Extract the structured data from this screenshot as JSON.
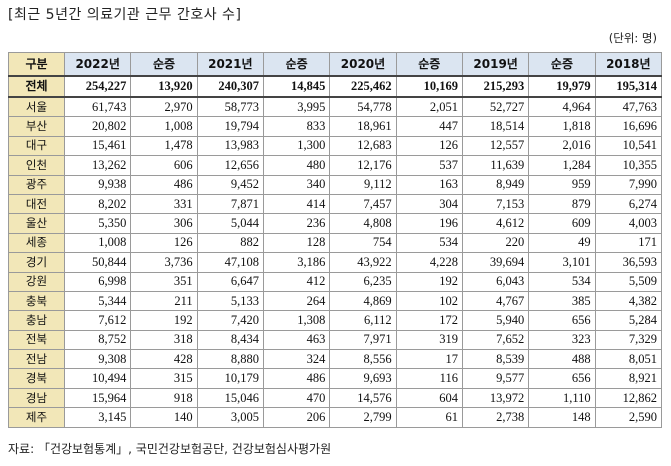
{
  "title": "[최근 5년간 의료기관 근무 간호사 수]",
  "unit": "(단위: 명)",
  "headers": [
    "구분",
    "2022년",
    "순증",
    "2021년",
    "순증",
    "2020년",
    "순증",
    "2019년",
    "순증",
    "2018년"
  ],
  "total": {
    "label": "전체",
    "values": [
      "254,227",
      "13,920",
      "240,307",
      "14,845",
      "225,462",
      "10,169",
      "215,293",
      "19,979",
      "195,314"
    ]
  },
  "rows": [
    {
      "label": "서울",
      "values": [
        "61,743",
        "2,970",
        "58,773",
        "3,995",
        "54,778",
        "2,051",
        "52,727",
        "4,964",
        "47,763"
      ]
    },
    {
      "label": "부산",
      "values": [
        "20,802",
        "1,008",
        "19,794",
        "833",
        "18,961",
        "447",
        "18,514",
        "1,818",
        "16,696"
      ]
    },
    {
      "label": "대구",
      "values": [
        "15,461",
        "1,478",
        "13,983",
        "1,300",
        "12,683",
        "126",
        "12,557",
        "2,016",
        "10,541"
      ]
    },
    {
      "label": "인천",
      "values": [
        "13,262",
        "606",
        "12,656",
        "480",
        "12,176",
        "537",
        "11,639",
        "1,284",
        "10,355"
      ]
    },
    {
      "label": "광주",
      "values": [
        "9,938",
        "486",
        "9,452",
        "340",
        "9,112",
        "163",
        "8,949",
        "959",
        "7,990"
      ]
    },
    {
      "label": "대전",
      "values": [
        "8,202",
        "331",
        "7,871",
        "414",
        "7,457",
        "304",
        "7,153",
        "879",
        "6,274"
      ]
    },
    {
      "label": "울산",
      "values": [
        "5,350",
        "306",
        "5,044",
        "236",
        "4,808",
        "196",
        "4,612",
        "609",
        "4,003"
      ]
    },
    {
      "label": "세종",
      "values": [
        "1,008",
        "126",
        "882",
        "128",
        "754",
        "534",
        "220",
        "49",
        "171"
      ]
    },
    {
      "label": "경기",
      "values": [
        "50,844",
        "3,736",
        "47,108",
        "3,186",
        "43,922",
        "4,228",
        "39,694",
        "3,101",
        "36,593"
      ]
    },
    {
      "label": "강원",
      "values": [
        "6,998",
        "351",
        "6,647",
        "412",
        "6,235",
        "192",
        "6,043",
        "534",
        "5,509"
      ]
    },
    {
      "label": "충북",
      "values": [
        "5,344",
        "211",
        "5,133",
        "264",
        "4,869",
        "102",
        "4,767",
        "385",
        "4,382"
      ]
    },
    {
      "label": "충남",
      "values": [
        "7,612",
        "192",
        "7,420",
        "1,308",
        "6,112",
        "172",
        "5,940",
        "656",
        "5,284"
      ]
    },
    {
      "label": "전북",
      "values": [
        "8,752",
        "318",
        "8,434",
        "463",
        "7,971",
        "319",
        "7,652",
        "323",
        "7,329"
      ]
    },
    {
      "label": "전남",
      "values": [
        "9,308",
        "428",
        "8,880",
        "324",
        "8,556",
        "17",
        "8,539",
        "488",
        "8,051"
      ]
    },
    {
      "label": "경북",
      "values": [
        "10,494",
        "315",
        "10,179",
        "486",
        "9,693",
        "116",
        "9,577",
        "656",
        "8,921"
      ]
    },
    {
      "label": "경남",
      "values": [
        "15,964",
        "918",
        "15,046",
        "470",
        "14,576",
        "604",
        "13,972",
        "1,110",
        "12,862"
      ]
    },
    {
      "label": "제주",
      "values": [
        "3,145",
        "140",
        "3,005",
        "206",
        "2,799",
        "61",
        "2,738",
        "148",
        "2,590"
      ]
    }
  ],
  "source": "자료: 「건강보험통계」, 국민건강보험공단, 건강보험심사평가원",
  "colors": {
    "header_bg": "#dbe5f1",
    "label_bg": "#f2e7b8",
    "border": "#9a9a9a"
  }
}
